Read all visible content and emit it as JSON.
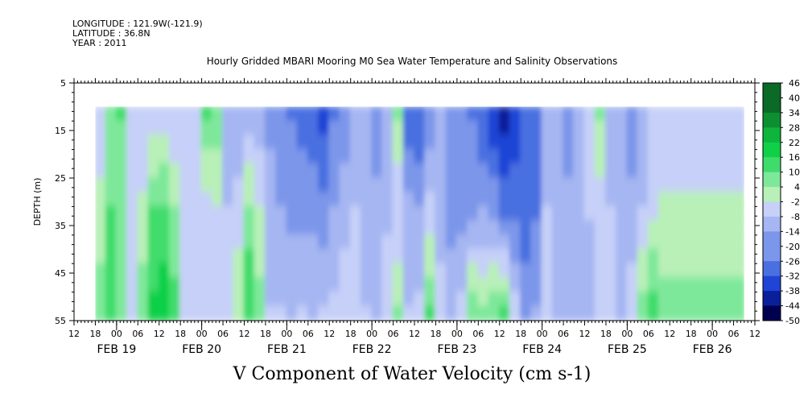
{
  "header": {
    "longitude": "LONGITUDE : 121.9W(-121.9)",
    "latitude": "LATITUDE : 36.8N",
    "year": "YEAR : 2011"
  },
  "chart_data": {
    "type": "heatmap",
    "title": "Hourly Gridded MBARI Mooring M0 Sea Water Temperature and Salinity Observations",
    "xlabel": "V Component of Water Velocity (cm s-1)",
    "ylabel": "DEPTH (m)",
    "x_range_hours": [
      "2011-02-18T12:00",
      "2011-02-26T12:00"
    ],
    "data_start": "2011-02-18T18:00",
    "data_end": "2011-02-26T09:00",
    "ylim": [
      55,
      5
    ],
    "y_ticks": [
      "5",
      "15",
      "25",
      "35",
      "45",
      "55"
    ],
    "y_tick_values": [
      5,
      15,
      25,
      35,
      45,
      55
    ],
    "data_depth_top": 10,
    "data_depth_bottom": 55,
    "hour_tick_labels": [
      "12",
      "18",
      "00",
      "06",
      "12",
      "18",
      "00",
      "06",
      "12",
      "18",
      "00",
      "06",
      "12",
      "18",
      "00",
      "06",
      "12",
      "18",
      "00",
      "06",
      "12",
      "18",
      "00",
      "06",
      "12",
      "18",
      "00",
      "06",
      "12",
      "18",
      "00",
      "06",
      "12"
    ],
    "date_labels": [
      "FEB 19",
      "FEB 20",
      "FEB 21",
      "FEB 22",
      "FEB 23",
      "FEB 24",
      "FEB 25",
      "FEB 26"
    ],
    "colorbar": {
      "levels": [
        "46",
        "40",
        "34",
        "28",
        "22",
        "16",
        "10",
        "4",
        "-2",
        "-8",
        "-14",
        "-20",
        "-26",
        "-32",
        "-38",
        "-44",
        "-50"
      ],
      "level_values": [
        46,
        40,
        34,
        28,
        22,
        16,
        10,
        4,
        -2,
        -8,
        -14,
        -20,
        -26,
        -32,
        -38,
        -44,
        -50
      ],
      "min": -50,
      "max": 50,
      "colors_low_to_high": [
        "#000050",
        "#0a1f9a",
        "#1f44d6",
        "#4a6fe0",
        "#7b96ea",
        "#a6b6f2",
        "#c6d0f8",
        "#b8f0b8",
        "#7ee89a",
        "#3fdc6c",
        "#10d048",
        "#0fb43c",
        "#0e8e32",
        "#0a6a26",
        "#074a1a"
      ]
    },
    "series": [
      {
        "name": "",
        "type": "column-profiles",
        "note": "values per 3-hour column, surface to 55 m",
        "columns": [
          {
            "t": "2011-02-18T18:00",
            "v_top": -6,
            "v_mid": -2,
            "v_bot": 8
          },
          {
            "t": "2011-02-18T21:00",
            "v_top": 8,
            "v_mid": 10,
            "v_bot": 12
          },
          {
            "t": "2011-02-19T00:00",
            "v_top": 10,
            "v_mid": 8,
            "v_bot": 4
          },
          {
            "t": "2011-02-19T03:00",
            "v_top": -4,
            "v_mid": -6,
            "v_bot": -4
          },
          {
            "t": "2011-02-19T06:00",
            "v_top": -8,
            "v_mid": -2,
            "v_bot": 8
          },
          {
            "t": "2011-02-19T09:00",
            "v_top": -6,
            "v_mid": 10,
            "v_bot": 18
          },
          {
            "t": "2011-02-19T12:00",
            "v_top": -8,
            "v_mid": 12,
            "v_bot": 22
          },
          {
            "t": "2011-02-19T15:00",
            "v_top": -10,
            "v_mid": 4,
            "v_bot": 14
          },
          {
            "t": "2011-02-19T18:00",
            "v_top": -10,
            "v_mid": -8,
            "v_bot": -4
          },
          {
            "t": "2011-02-19T21:00",
            "v_top": -6,
            "v_mid": -8,
            "v_bot": -8
          },
          {
            "t": "2011-02-20T00:00",
            "v_top": 10,
            "v_mid": -6,
            "v_bot": -8
          },
          {
            "t": "2011-02-20T03:00",
            "v_top": 8,
            "v_mid": -4,
            "v_bot": -10
          },
          {
            "t": "2011-02-20T06:00",
            "v_top": -14,
            "v_mid": -10,
            "v_bot": -10
          },
          {
            "t": "2011-02-20T09:00",
            "v_top": -16,
            "v_mid": -6,
            "v_bot": 2
          },
          {
            "t": "2011-02-20T12:00",
            "v_top": -14,
            "v_mid": 6,
            "v_bot": 16
          },
          {
            "t": "2011-02-20T15:00",
            "v_top": -14,
            "v_mid": -2,
            "v_bot": 6
          },
          {
            "t": "2011-02-20T18:00",
            "v_top": -18,
            "v_mid": -14,
            "v_bot": -10
          },
          {
            "t": "2011-02-20T21:00",
            "v_top": -22,
            "v_mid": -16,
            "v_bot": -10
          },
          {
            "t": "2011-02-21T00:00",
            "v_top": -24,
            "v_mid": -18,
            "v_bot": -12
          },
          {
            "t": "2011-02-21T03:00",
            "v_top": -26,
            "v_mid": -18,
            "v_bot": -10
          },
          {
            "t": "2011-02-21T06:00",
            "v_top": -30,
            "v_mid": -18,
            "v_bot": -12
          },
          {
            "t": "2011-02-21T09:00",
            "v_top": -32,
            "v_mid": -20,
            "v_bot": -10
          },
          {
            "t": "2011-02-21T12:00",
            "v_top": -24,
            "v_mid": -16,
            "v_bot": -8
          },
          {
            "t": "2011-02-21T15:00",
            "v_top": -20,
            "v_mid": -14,
            "v_bot": -4
          },
          {
            "t": "2011-02-21T18:00",
            "v_top": -12,
            "v_mid": -10,
            "v_bot": -6
          },
          {
            "t": "2011-02-21T21:00",
            "v_top": -16,
            "v_mid": -12,
            "v_bot": -10
          },
          {
            "t": "2011-02-22T00:00",
            "v_top": -18,
            "v_mid": -16,
            "v_bot": -12
          },
          {
            "t": "2011-02-22T03:00",
            "v_top": -16,
            "v_mid": -12,
            "v_bot": -4
          },
          {
            "t": "2011-02-22T06:00",
            "v_top": 4,
            "v_mid": -10,
            "v_bot": 4
          },
          {
            "t": "2011-02-22T09:00",
            "v_top": -28,
            "v_mid": -14,
            "v_bot": -10
          },
          {
            "t": "2011-02-22T12:00",
            "v_top": -30,
            "v_mid": -16,
            "v_bot": -8
          },
          {
            "t": "2011-02-22T15:00",
            "v_top": -22,
            "v_mid": -6,
            "v_bot": 10
          },
          {
            "t": "2011-02-22T18:00",
            "v_top": -16,
            "v_mid": -12,
            "v_bot": -8
          },
          {
            "t": "2011-02-22T21:00",
            "v_top": -20,
            "v_mid": -18,
            "v_bot": -14
          },
          {
            "t": "2011-02-23T00:00",
            "v_top": -22,
            "v_mid": -20,
            "v_bot": -8
          },
          {
            "t": "2011-02-23T03:00",
            "v_top": -24,
            "v_mid": -18,
            "v_bot": 8
          },
          {
            "t": "2011-02-23T06:00",
            "v_top": -30,
            "v_mid": -16,
            "v_bot": 4
          },
          {
            "t": "2011-02-23T09:00",
            "v_top": -36,
            "v_mid": -18,
            "v_bot": 8
          },
          {
            "t": "2011-02-23T12:00",
            "v_top": -40,
            "v_mid": -24,
            "v_bot": 12
          },
          {
            "t": "2011-02-23T15:00",
            "v_top": -34,
            "v_mid": -26,
            "v_bot": -6
          },
          {
            "t": "2011-02-23T18:00",
            "v_top": -30,
            "v_mid": -28,
            "v_bot": -18
          },
          {
            "t": "2011-02-23T21:00",
            "v_top": -24,
            "v_mid": -24,
            "v_bot": -16
          },
          {
            "t": "2011-02-24T00:00",
            "v_top": -14,
            "v_mid": -10,
            "v_bot": -8
          },
          {
            "t": "2011-02-24T03:00",
            "v_top": -14,
            "v_mid": -12,
            "v_bot": -12
          },
          {
            "t": "2011-02-24T06:00",
            "v_top": -18,
            "v_mid": -16,
            "v_bot": -14
          },
          {
            "t": "2011-02-24T09:00",
            "v_top": -14,
            "v_mid": -12,
            "v_bot": -14
          },
          {
            "t": "2011-02-24T12:00",
            "v_top": -10,
            "v_mid": -10,
            "v_bot": -12
          },
          {
            "t": "2011-02-24T15:00",
            "v_top": 4,
            "v_mid": -8,
            "v_bot": -10
          },
          {
            "t": "2011-02-24T18:00",
            "v_top": -12,
            "v_mid": -10,
            "v_bot": -8
          },
          {
            "t": "2011-02-24T21:00",
            "v_top": -16,
            "v_mid": -14,
            "v_bot": -12
          },
          {
            "t": "2011-02-25T00:00",
            "v_top": -18,
            "v_mid": -16,
            "v_bot": -4
          },
          {
            "t": "2011-02-25T03:00",
            "v_top": -16,
            "v_mid": -10,
            "v_bot": 6
          },
          {
            "t": "2011-02-25T06:00",
            "v_top": -10,
            "v_mid": -4,
            "v_bot": 14
          },
          {
            "t": "2011-02-25T09:00",
            "v_top": -8,
            "v_mid": -2,
            "v_bot": 6
          }
        ]
      }
    ],
    "grid": false,
    "legend": "colorbar-right"
  }
}
